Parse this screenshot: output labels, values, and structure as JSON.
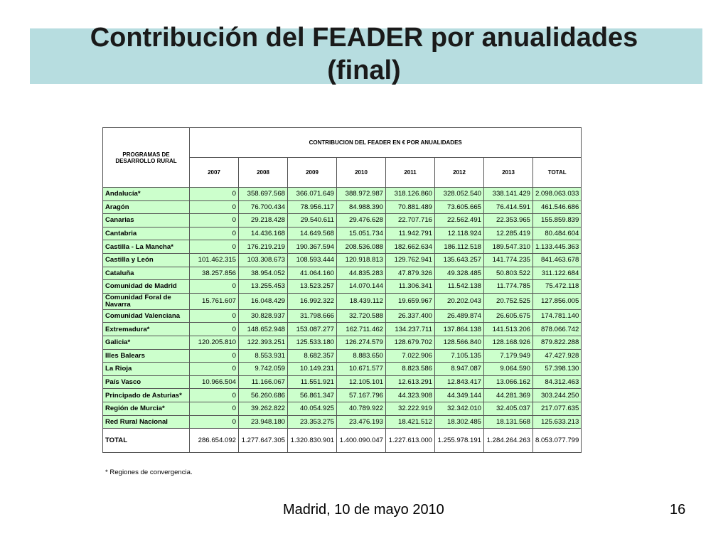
{
  "slide": {
    "title_line1": "Contribución del FEADER por anualidades",
    "title_line2": "(final)",
    "footnote": "* Regiones de convergencia.",
    "footer_left": "Madrid, 10 de mayo 2010",
    "page_number": "16"
  },
  "table": {
    "program_header": "PROGRAMAS DE DESARROLLO RURAL",
    "group_header": "CONTRIBUCION DEL FEADER EN € POR ANUALIDADES",
    "columns": [
      "2007",
      "2008",
      "2009",
      "2010",
      "2011",
      "2012",
      "2013",
      "TOTAL"
    ],
    "rows": [
      {
        "name": "Andalucía*",
        "values": [
          "0",
          "358.697.568",
          "366.071.649",
          "388.972.987",
          "318.126.860",
          "328.052.540",
          "338.141.429",
          "2.098.063.033"
        ]
      },
      {
        "name": "Aragón",
        "values": [
          "0",
          "76.700.434",
          "78.956.117",
          "84.988.390",
          "70.881.489",
          "73.605.665",
          "76.414.591",
          "461.546.686"
        ]
      },
      {
        "name": "Canarias",
        "values": [
          "0",
          "29.218.428",
          "29.540.611",
          "29.476.628",
          "22.707.716",
          "22.562.491",
          "22.353.965",
          "155.859.839"
        ]
      },
      {
        "name": "Cantabria",
        "values": [
          "0",
          "14.436.168",
          "14.649.568",
          "15.051.734",
          "11.942.791",
          "12.118.924",
          "12.285.419",
          "80.484.604"
        ]
      },
      {
        "name": "Castilla - La Mancha*",
        "values": [
          "0",
          "176.219.219",
          "190.367.594",
          "208.536.088",
          "182.662.634",
          "186.112.518",
          "189.547.310",
          "1.133.445.363"
        ]
      },
      {
        "name": "Castilla y León",
        "values": [
          "101.462.315",
          "103.308.673",
          "108.593.444",
          "120.918.813",
          "129.762.941",
          "135.643.257",
          "141.774.235",
          "841.463.678"
        ]
      },
      {
        "name": "Cataluña",
        "values": [
          "38.257.856",
          "38.954.052",
          "41.064.160",
          "44.835.283",
          "47.879.326",
          "49.328.485",
          "50.803.522",
          "311.122.684"
        ]
      },
      {
        "name": "Comunidad de Madrid",
        "values": [
          "0",
          "13.255.453",
          "13.523.257",
          "14.070.144",
          "11.306.341",
          "11.542.138",
          "11.774.785",
          "75.472.118"
        ]
      },
      {
        "name": "Comunidad Foral de Navarra",
        "values": [
          "15.761.607",
          "16.048.429",
          "16.992.322",
          "18.439.112",
          "19.659.967",
          "20.202.043",
          "20.752.525",
          "127.856.005"
        ]
      },
      {
        "name": "Comunidad Valenciana",
        "values": [
          "0",
          "30.828.937",
          "31.798.666",
          "32.720.588",
          "26.337.400",
          "26.489.874",
          "26.605.675",
          "174.781.140"
        ]
      },
      {
        "name": "Extremadura*",
        "values": [
          "0",
          "148.652.948",
          "153.087.277",
          "162.711.462",
          "134.237.711",
          "137.864.138",
          "141.513.206",
          "878.066.742"
        ]
      },
      {
        "name": "Galicia*",
        "values": [
          "120.205.810",
          "122.393.251",
          "125.533.180",
          "126.274.579",
          "128.679.702",
          "128.566.840",
          "128.168.926",
          "879.822.288"
        ]
      },
      {
        "name": "Illes Balears",
        "values": [
          "0",
          "8.553.931",
          "8.682.357",
          "8.883.650",
          "7.022.906",
          "7.105.135",
          "7.179.949",
          "47.427.928"
        ]
      },
      {
        "name": "La Rioja",
        "values": [
          "0",
          "9.742.059",
          "10.149.231",
          "10.671.577",
          "8.823.586",
          "8.947.087",
          "9.064.590",
          "57.398.130"
        ]
      },
      {
        "name": "País Vasco",
        "values": [
          "10.966.504",
          "11.166.067",
          "11.551.921",
          "12.105.101",
          "12.613.291",
          "12.843.417",
          "13.066.162",
          "84.312.463"
        ]
      },
      {
        "name": "Principado de Asturias*",
        "values": [
          "0",
          "56.260.686",
          "56.861.347",
          "57.167.796",
          "44.323.908",
          "44.349.144",
          "44.281.369",
          "303.244.250"
        ]
      },
      {
        "name": "Región de Murcia*",
        "values": [
          "0",
          "39.262.822",
          "40.054.925",
          "40.789.922",
          "32.222.919",
          "32.342.010",
          "32.405.037",
          "217.077.635"
        ]
      },
      {
        "name": "Red Rural Nacional",
        "values": [
          "0",
          "23.948.180",
          "23.353.275",
          "23.476.193",
          "18.421.512",
          "18.302.485",
          "18.131.568",
          "125.633.213"
        ]
      }
    ],
    "total_row": {
      "name": "TOTAL",
      "values": [
        "286.654.092",
        "1.277.647.305",
        "1.320.830.901",
        "1.400.090.047",
        "1.227.613.000",
        "1.255.978.191",
        "1.284.264.263",
        "8.053.077.799"
      ]
    }
  }
}
